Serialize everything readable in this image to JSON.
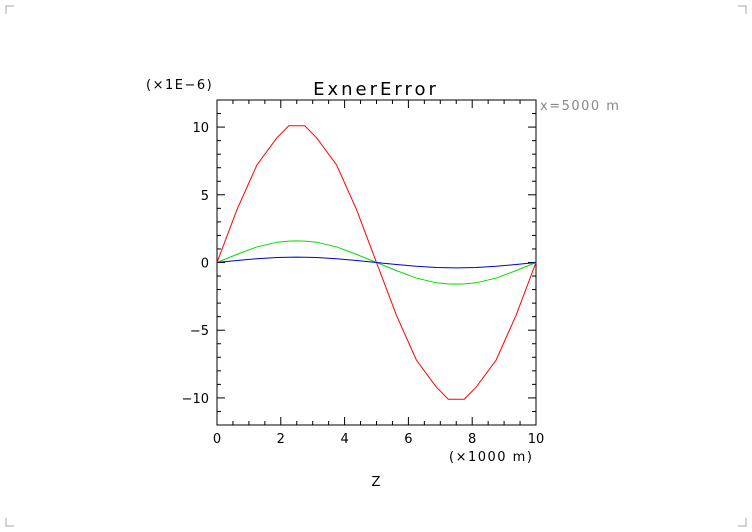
{
  "chart_data": {
    "type": "line",
    "title": "ExnerError",
    "annotation": "x=5000 m",
    "y_multiplier_label": "(×1E−6)",
    "xlabel": "Z",
    "x_unit_label": "(×1000 m)",
    "xlim": [
      0,
      10
    ],
    "ylim": [
      -12,
      12
    ],
    "x_ticks": [
      "0",
      "2",
      "4",
      "6",
      "8",
      "10"
    ],
    "y_ticks": [
      "−10",
      "−5",
      "0",
      "5",
      "10"
    ],
    "grid": false,
    "x_ticks_values": [
      0,
      2,
      4,
      6,
      8,
      10
    ],
    "y_ticks_values": [
      -10,
      -5,
      0,
      5,
      10
    ],
    "x": [
      0,
      0.625,
      1.25,
      1.875,
      2.25,
      2.5,
      2.75,
      3.125,
      3.75,
      4.375,
      5,
      5.625,
      6.25,
      6.875,
      7.25,
      7.5,
      7.75,
      8.125,
      8.75,
      9.375,
      10
    ],
    "series": [
      {
        "color": "#ff0000",
        "values": [
          0,
          3.9,
          7.2,
          9.2,
          10.1,
          10.1,
          10.1,
          9.2,
          7.2,
          3.9,
          0,
          -3.9,
          -7.2,
          -9.2,
          -10.1,
          -10.1,
          -10.1,
          -9.2,
          -7.2,
          -3.9,
          0
        ]
      },
      {
        "color": "#00dd00",
        "values": [
          0,
          0.6,
          1.15,
          1.5,
          1.58,
          1.6,
          1.58,
          1.5,
          1.15,
          0.6,
          0,
          -0.6,
          -1.15,
          -1.5,
          -1.58,
          -1.6,
          -1.58,
          -1.5,
          -1.15,
          -0.6,
          0
        ]
      },
      {
        "color": "#0000cc",
        "values": [
          0,
          0.15,
          0.28,
          0.37,
          0.39,
          0.4,
          0.39,
          0.37,
          0.28,
          0.15,
          0,
          -0.15,
          -0.28,
          -0.37,
          -0.39,
          -0.4,
          -0.39,
          -0.37,
          -0.28,
          -0.15,
          0
        ]
      }
    ]
  }
}
